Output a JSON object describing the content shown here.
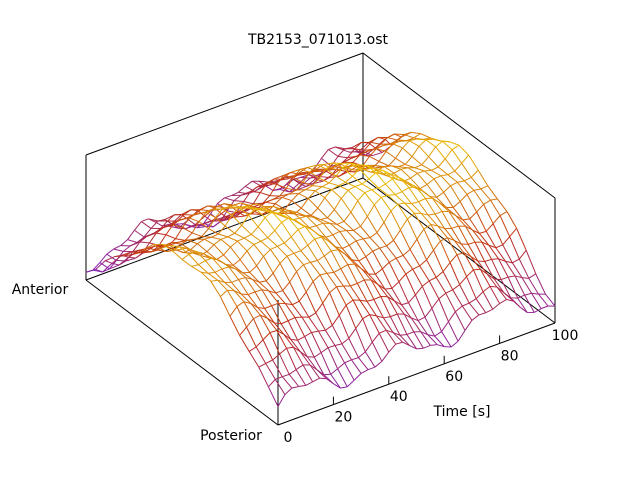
{
  "chart_data": {
    "type": "surface",
    "title": "TB2153_071013.ost",
    "x_axis": {
      "label": "Time [s]",
      "range": [
        0,
        100
      ],
      "ticks": [
        0,
        20,
        40,
        60,
        80,
        100
      ]
    },
    "y_axis": {
      "label_start": "Anterior",
      "label_end": "Posterior"
    },
    "z_axis": {
      "labeled": false
    },
    "grid": false,
    "colormap": [
      "#7a1fd6",
      "#c12e14",
      "#f5e600"
    ],
    "surface": {
      "description_shape": "ridge highest near mid-depth, decreasing toward anterior/posterior edges, with waves along time",
      "rows_time": [
        0,
        5,
        10,
        15,
        20,
        25,
        30,
        35,
        40,
        45,
        50,
        55,
        60,
        65,
        70,
        75,
        80,
        85,
        90,
        95,
        100
      ],
      "cols_depth": [
        0,
        0.1,
        0.2,
        0.3,
        0.4,
        0.5,
        0.6,
        0.7,
        0.8,
        0.9,
        1.0
      ]
    }
  }
}
